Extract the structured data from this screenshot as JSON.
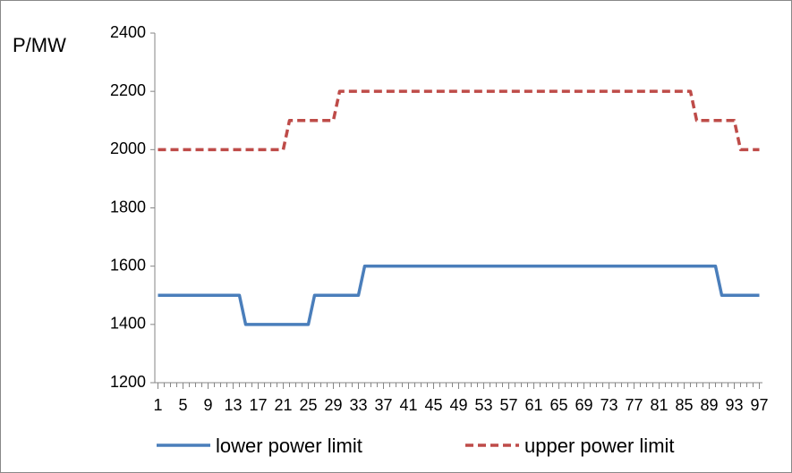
{
  "chart_data": {
    "type": "line",
    "y_label": "P/MW",
    "x": [
      1,
      2,
      3,
      4,
      5,
      6,
      7,
      8,
      9,
      10,
      11,
      12,
      13,
      14,
      15,
      16,
      17,
      18,
      19,
      20,
      21,
      22,
      23,
      24,
      25,
      26,
      27,
      28,
      29,
      30,
      31,
      32,
      33,
      34,
      35,
      36,
      37,
      38,
      39,
      40,
      41,
      42,
      43,
      44,
      45,
      46,
      47,
      48,
      49,
      50,
      51,
      52,
      53,
      54,
      55,
      56,
      57,
      58,
      59,
      60,
      61,
      62,
      63,
      64,
      65,
      66,
      67,
      68,
      69,
      70,
      71,
      72,
      73,
      74,
      75,
      76,
      77,
      78,
      79,
      80,
      81,
      82,
      83,
      84,
      85,
      86,
      87,
      88,
      89,
      90,
      91,
      92,
      93,
      94,
      95,
      96,
      97
    ],
    "xlim": [
      0.5,
      97.5
    ],
    "xticks": [
      1,
      5,
      9,
      13,
      17,
      21,
      25,
      29,
      33,
      37,
      41,
      45,
      49,
      53,
      57,
      61,
      65,
      69,
      73,
      77,
      81,
      85,
      89,
      93,
      97
    ],
    "ylim": [
      1200,
      2400
    ],
    "yticks": [
      1200,
      1400,
      1600,
      1800,
      2000,
      2200,
      2400
    ],
    "grid": false,
    "legend": "bottom",
    "series": [
      {
        "name": "lower power limit",
        "color": "#4a7ebb",
        "dash": false,
        "values": [
          1500,
          1500,
          1500,
          1500,
          1500,
          1500,
          1500,
          1500,
          1500,
          1500,
          1500,
          1500,
          1500,
          1500,
          1400,
          1400,
          1400,
          1400,
          1400,
          1400,
          1400,
          1400,
          1400,
          1400,
          1400,
          1500,
          1500,
          1500,
          1500,
          1500,
          1500,
          1500,
          1500,
          1600,
          1600,
          1600,
          1600,
          1600,
          1600,
          1600,
          1600,
          1600,
          1600,
          1600,
          1600,
          1600,
          1600,
          1600,
          1600,
          1600,
          1600,
          1600,
          1600,
          1600,
          1600,
          1600,
          1600,
          1600,
          1600,
          1600,
          1600,
          1600,
          1600,
          1600,
          1600,
          1600,
          1600,
          1600,
          1600,
          1600,
          1600,
          1600,
          1600,
          1600,
          1600,
          1600,
          1600,
          1600,
          1600,
          1600,
          1600,
          1600,
          1600,
          1600,
          1600,
          1600,
          1600,
          1600,
          1600,
          1600,
          1500,
          1500,
          1500,
          1500,
          1500,
          1500,
          1500
        ]
      },
      {
        "name": "upper power limit",
        "color": "#be4b48",
        "dash": true,
        "values": [
          2000,
          2000,
          2000,
          2000,
          2000,
          2000,
          2000,
          2000,
          2000,
          2000,
          2000,
          2000,
          2000,
          2000,
          2000,
          2000,
          2000,
          2000,
          2000,
          2000,
          2000,
          2100,
          2100,
          2100,
          2100,
          2100,
          2100,
          2100,
          2100,
          2200,
          2200,
          2200,
          2200,
          2200,
          2200,
          2200,
          2200,
          2200,
          2200,
          2200,
          2200,
          2200,
          2200,
          2200,
          2200,
          2200,
          2200,
          2200,
          2200,
          2200,
          2200,
          2200,
          2200,
          2200,
          2200,
          2200,
          2200,
          2200,
          2200,
          2200,
          2200,
          2200,
          2200,
          2200,
          2200,
          2200,
          2200,
          2200,
          2200,
          2200,
          2200,
          2200,
          2200,
          2200,
          2200,
          2200,
          2200,
          2200,
          2200,
          2200,
          2200,
          2200,
          2200,
          2200,
          2200,
          2200,
          2100,
          2100,
          2100,
          2100,
          2100,
          2100,
          2100,
          2000,
          2000,
          2000,
          2000
        ]
      }
    ]
  }
}
